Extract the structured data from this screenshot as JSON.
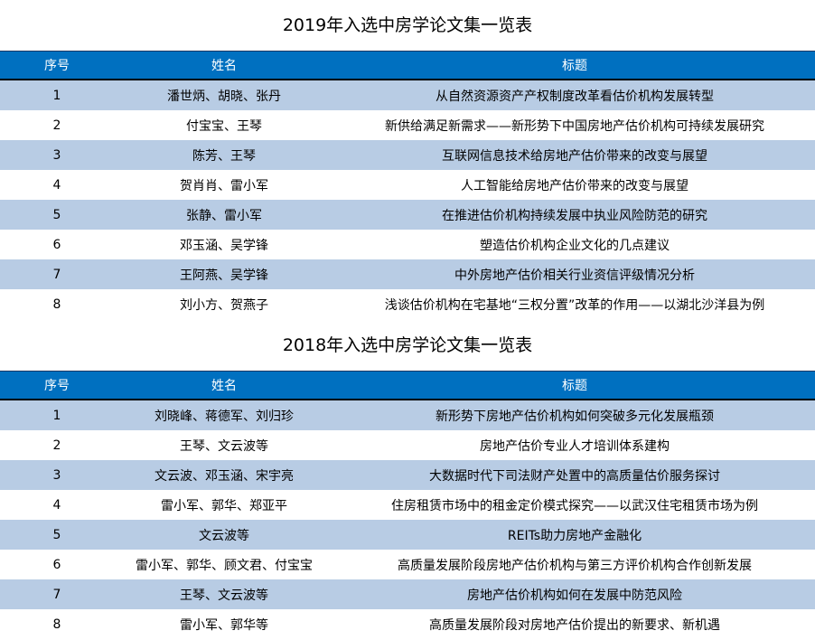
{
  "colors": {
    "header_bg": "#0070c0",
    "band_bg": "#b8cce4",
    "header_text": "#ffffff"
  },
  "tables": [
    {
      "title": "2019年入选中房学论文集一览表",
      "headers": [
        "序号",
        "姓名",
        "标题"
      ],
      "rows": [
        [
          "1",
          "潘世炳、胡晓、张丹",
          "从自然资源资产产权制度改革看估价机构发展转型"
        ],
        [
          "2",
          "付宝宝、王琴",
          "新供给满足新需求——新形势下中国房地产估价机构可持续发展研究"
        ],
        [
          "3",
          "陈芳、王琴",
          "互联网信息技术给房地产估价带来的改变与展望"
        ],
        [
          "4",
          "贺肖肖、雷小军",
          "人工智能给房地产估价带来的改变与展望"
        ],
        [
          "5",
          "张静、雷小军",
          "在推进估价机构持续发展中执业风险防范的研究"
        ],
        [
          "6",
          "邓玉涵、吴学锋",
          "塑造估价机构企业文化的几点建议"
        ],
        [
          "7",
          "王阿燕、吴学锋",
          "中外房地产估价相关行业资信评级情况分析"
        ],
        [
          "8",
          "刘小方、贺燕子",
          "浅谈估价机构在宅基地“三权分置”改革的作用——以湖北沙洋县为例"
        ]
      ]
    },
    {
      "title": "2018年入选中房学论文集一览表",
      "headers": [
        "序号",
        "姓名",
        "标题"
      ],
      "rows": [
        [
          "1",
          "刘晓峰、蒋德军、刘归珍",
          "新形势下房地产估价机构如何突破多元化发展瓶颈"
        ],
        [
          "2",
          "王琴、文云波等",
          "房地产估价专业人才培训体系建构"
        ],
        [
          "3",
          "文云波、邓玉涵、宋宇亮",
          "大数据时代下司法财产处置中的高质量估价服务探讨"
        ],
        [
          "4",
          "雷小军、郭华、郑亚平",
          "住房租赁市场中的租金定价模式探究——以武汉住宅租赁市场为例"
        ],
        [
          "5",
          "文云波等",
          "REITs助力房地产金融化"
        ],
        [
          "6",
          "雷小军、郭华、顾文君、付宝宝",
          "高质量发展阶段房地产估价机构与第三方评价机构合作创新发展"
        ],
        [
          "7",
          "王琴、文云波等",
          "房地产估价机构如何在发展中防范风险"
        ],
        [
          "8",
          "雷小军、郭华等",
          "高质量发展阶段对房地产估价提出的新要求、新机遇"
        ]
      ]
    }
  ]
}
